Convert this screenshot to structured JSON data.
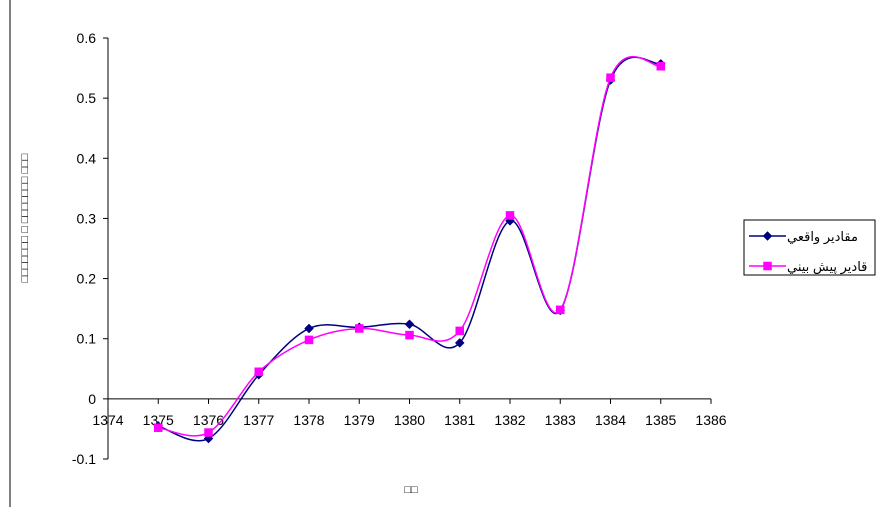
{
  "chart_data": {
    "type": "line",
    "title": "",
    "xlabel": "□□",
    "ylabel": "□□□□□□□ □ □□□□□□□ □□□",
    "xlim": [
      1374,
      1386
    ],
    "ylim": [
      -0.1,
      0.6
    ],
    "x_ticks": [
      "1374",
      "1375",
      "1376",
      "1377",
      "1378",
      "1379",
      "1380",
      "1381",
      "1382",
      "1383",
      "1384",
      "1385",
      "1386"
    ],
    "y_ticks": [
      "-0.1",
      "0",
      "0.1",
      "0.2",
      "0.3",
      "0.4",
      "0.5",
      "0.6"
    ],
    "grid": false,
    "legend_position": "right",
    "smooth": true,
    "series": [
      {
        "name": "مقادير واقعي",
        "color": "#000080",
        "marker": "diamond",
        "x": [
          1375,
          1376,
          1377,
          1378,
          1379,
          1380,
          1381,
          1382,
          1383,
          1384,
          1385
        ],
        "values": [
          -0.045,
          -0.066,
          0.04,
          0.117,
          0.119,
          0.124,
          0.093,
          0.296,
          0.147,
          0.53,
          0.557
        ]
      },
      {
        "name": "قادير پيش بيني",
        "color": "#ff00ff",
        "marker": "square",
        "x": [
          1375,
          1376,
          1377,
          1378,
          1379,
          1380,
          1381,
          1382,
          1383,
          1384,
          1385
        ],
        "values": [
          -0.048,
          -0.056,
          0.045,
          0.098,
          0.117,
          0.106,
          0.113,
          0.305,
          0.148,
          0.534,
          0.553
        ]
      }
    ]
  }
}
